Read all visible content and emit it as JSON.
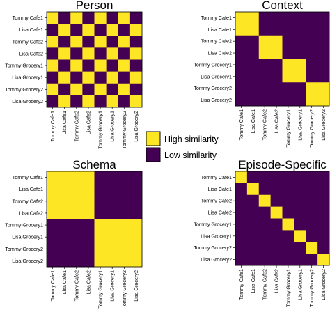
{
  "colors": {
    "high": "#fde725",
    "low": "#440154"
  },
  "legend": {
    "high_label": "High similarity",
    "low_label": "Low similarity"
  },
  "chart_data": [
    {
      "type": "heatmap",
      "title": "Person",
      "labels": [
        "Tommy Cafe1",
        "Lisa Cafe1",
        "Tommy Cafe2",
        "Lisa Cafe2",
        "Tommy Grocery1",
        "Lisa Grocery1",
        "Tommy Grocery2",
        "Lisa Grocery2"
      ],
      "values": [
        [
          1,
          0,
          1,
          0,
          1,
          0,
          1,
          0
        ],
        [
          0,
          1,
          0,
          1,
          0,
          1,
          0,
          1
        ],
        [
          1,
          0,
          1,
          0,
          1,
          0,
          1,
          0
        ],
        [
          0,
          1,
          0,
          1,
          0,
          1,
          0,
          1
        ],
        [
          1,
          0,
          1,
          0,
          1,
          0,
          1,
          0
        ],
        [
          0,
          1,
          0,
          1,
          0,
          1,
          0,
          1
        ],
        [
          1,
          0,
          1,
          0,
          1,
          0,
          1,
          0
        ],
        [
          0,
          1,
          0,
          1,
          0,
          1,
          0,
          1
        ]
      ]
    },
    {
      "type": "heatmap",
      "title": "Context",
      "labels": [
        "Tommy Cafe1",
        "Lisa Cafe1",
        "Tommy Cafe2",
        "Lisa Cafe2",
        "Tommy Grocery1",
        "Lisa Grocery1",
        "Tommy Grocery2",
        "Lisa Grocery2"
      ],
      "values": [
        [
          1,
          1,
          0,
          0,
          0,
          0,
          0,
          0
        ],
        [
          1,
          1,
          0,
          0,
          0,
          0,
          0,
          0
        ],
        [
          0,
          0,
          1,
          1,
          0,
          0,
          0,
          0
        ],
        [
          0,
          0,
          1,
          1,
          0,
          0,
          0,
          0
        ],
        [
          0,
          0,
          0,
          0,
          1,
          1,
          0,
          0
        ],
        [
          0,
          0,
          0,
          0,
          1,
          1,
          0,
          0
        ],
        [
          0,
          0,
          0,
          0,
          0,
          0,
          1,
          1
        ],
        [
          0,
          0,
          0,
          0,
          0,
          0,
          1,
          1
        ]
      ]
    },
    {
      "type": "heatmap",
      "title": "Schema",
      "labels": [
        "Tommy Cafe1",
        "Lisa Cafe1",
        "Tommy Cafe2",
        "Lisa Cafe2",
        "Tommy Grocery1",
        "Lisa Grocery1",
        "Tommy Grocery2",
        "Lisa Grocery2"
      ],
      "values": [
        [
          1,
          1,
          1,
          1,
          0,
          0,
          0,
          0
        ],
        [
          1,
          1,
          1,
          1,
          0,
          0,
          0,
          0
        ],
        [
          1,
          1,
          1,
          1,
          0,
          0,
          0,
          0
        ],
        [
          1,
          1,
          1,
          1,
          0,
          0,
          0,
          0
        ],
        [
          0,
          0,
          0,
          0,
          1,
          1,
          1,
          1
        ],
        [
          0,
          0,
          0,
          0,
          1,
          1,
          1,
          1
        ],
        [
          0,
          0,
          0,
          0,
          1,
          1,
          1,
          1
        ],
        [
          0,
          0,
          0,
          0,
          1,
          1,
          1,
          1
        ]
      ]
    },
    {
      "type": "heatmap",
      "title": "Episode-Specific",
      "labels": [
        "Tommy Cafe1",
        "Lisa Cafe1",
        "Tommy Cafe2",
        "Lisa Cafe2",
        "Tommy Grocery1",
        "Lisa Grocery1",
        "Tommy Grocery2",
        "Lisa Grocery2"
      ],
      "values": [
        [
          1,
          0,
          0,
          0,
          0,
          0,
          0,
          0
        ],
        [
          0,
          1,
          0,
          0,
          0,
          0,
          0,
          0
        ],
        [
          0,
          0,
          1,
          0,
          0,
          0,
          0,
          0
        ],
        [
          0,
          0,
          0,
          1,
          0,
          0,
          0,
          0
        ],
        [
          0,
          0,
          0,
          0,
          1,
          0,
          0,
          0
        ],
        [
          0,
          0,
          0,
          0,
          0,
          1,
          0,
          0
        ],
        [
          0,
          0,
          0,
          0,
          0,
          0,
          1,
          0
        ],
        [
          0,
          0,
          0,
          0,
          0,
          0,
          0,
          1
        ]
      ]
    }
  ]
}
